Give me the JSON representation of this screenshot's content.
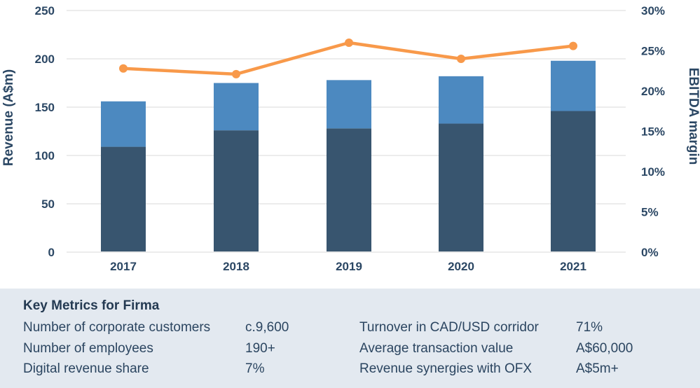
{
  "colors": {
    "navy_text": "#2b4764",
    "bar_dark": "#38556F",
    "bar_light": "#4C89C0",
    "line_orange": "#F8994A",
    "gridline": "#ECECEC",
    "panel_bg": "#E3E9F0"
  },
  "chart_data": {
    "type": "bar",
    "subtype": "stacked-bars-with-line-overlay",
    "categories": [
      "2017",
      "2018",
      "2019",
      "2020",
      "2021"
    ],
    "series": [
      {
        "name": "revenue-segment-dark",
        "type": "bar",
        "stack_order": 0,
        "color_key": "bar_dark",
        "values": [
          109,
          126,
          128,
          133,
          146
        ]
      },
      {
        "name": "revenue-segment-light",
        "type": "bar",
        "stack_order": 1,
        "color_key": "bar_light",
        "values": [
          47,
          49,
          50,
          49,
          52
        ]
      }
    ],
    "revenue_totals": [
      156,
      175,
      178,
      182,
      198
    ],
    "line_series": {
      "name": "EBITDA margin",
      "type": "line",
      "axis": "right",
      "color_key": "line_orange",
      "values": [
        22.8,
        22.1,
        26.0,
        24.0,
        25.6
      ]
    },
    "left_axis": {
      "label": "Revenue (A$m)",
      "min": 0,
      "max": 250,
      "step": 50,
      "ticks": [
        "250",
        "200",
        "150",
        "100",
        "50",
        "0"
      ]
    },
    "right_axis": {
      "label": "EBITDA margin",
      "min": 0,
      "max": 30,
      "step": 5,
      "ticks": [
        "30%",
        "25%",
        "20%",
        "15%",
        "10%",
        "5%",
        "0%"
      ]
    },
    "title": "",
    "grid": true,
    "legend": "none"
  },
  "metrics": {
    "title": "Key Metrics for Firma",
    "left_rows": [
      {
        "label": "Number of corporate customers",
        "value": "c.9,600"
      },
      {
        "label": "Number of employees",
        "value": "190+"
      },
      {
        "label": "Digital revenue share",
        "value": "7%"
      }
    ],
    "right_rows": [
      {
        "label": "Turnover in CAD/USD corridor",
        "value": "71%"
      },
      {
        "label": "Average transaction value",
        "value": "A$60,000"
      },
      {
        "label": "Revenue synergies with OFX",
        "value": "A$5m+"
      }
    ]
  }
}
